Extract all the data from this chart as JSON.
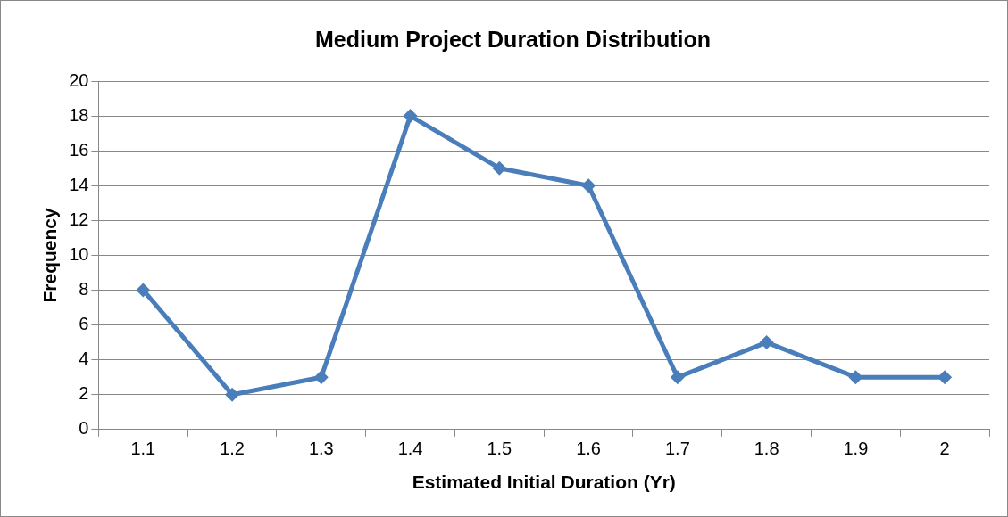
{
  "chart_data": {
    "type": "line",
    "title": "Medium Project Duration Distribution",
    "xlabel": "Estimated Initial Duration (Yr)",
    "ylabel": "Frequency",
    "categories": [
      "1.1",
      "1.2",
      "1.3",
      "1.4",
      "1.5",
      "1.6",
      "1.7",
      "1.8",
      "1.9",
      "2"
    ],
    "series": [
      {
        "color": "#4a7ebb",
        "values": [
          8,
          2,
          3,
          18,
          15,
          14,
          3,
          5,
          3,
          3
        ]
      }
    ],
    "ylim": [
      0,
      20
    ],
    "yticks": [
      0,
      2,
      4,
      6,
      8,
      10,
      12,
      14,
      16,
      18,
      20
    ],
    "grid": "y",
    "legend": false,
    "marker": "diamond",
    "line_style": "solid"
  }
}
